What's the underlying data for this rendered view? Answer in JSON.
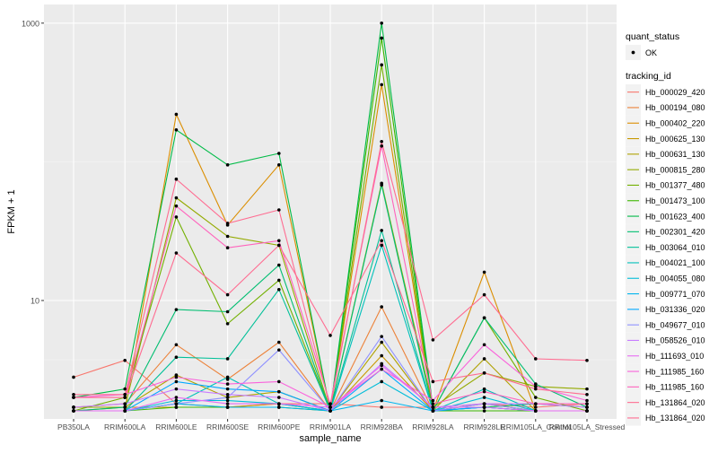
{
  "chart_data": {
    "type": "line",
    "xlabel": "sample_name",
    "ylabel": "FPKM + 1",
    "y_scale": "log10",
    "ylim": [
      1.4,
      1000
    ],
    "yticks": [
      {
        "value": 1000,
        "label": "1000"
      },
      {
        "value": 10,
        "label": "10"
      }
    ],
    "categories": [
      "PB350LA",
      "RRIM600LA",
      "RRIM600LE",
      "RRIM600SE",
      "RRIM600PE",
      "RRIM901LA",
      "RRIM928BA",
      "RRIM928LA",
      "RRIM928LE",
      "RRIM105LA_Control",
      "RRIM105LA_Stressed"
    ],
    "x_tick_labels": [
      "PB350LA",
      "RRIM600LA",
      "RRIM600LE",
      "RRIM600SE",
      "RRIM600PE",
      "RRIM901LA",
      "RRIM928BA",
      "RRIM928LA",
      "RRIM928LE",
      "RRIM105LA_Control",
      "RRIM105LA_Stressed"
    ],
    "legend": {
      "position": "right",
      "point_title": "quant_status",
      "point_label": "OK",
      "line_title": "tracking_id"
    },
    "series": [
      {
        "name": "Hb_000029_420",
        "color": "#F8766D",
        "values": [
          2.8,
          3.7,
          1.8,
          1.7,
          1.8,
          1.8,
          1.7,
          1.7,
          1.8,
          1.7,
          1.8
        ]
      },
      {
        "name": "Hb_000194_080",
        "color": "#EC8239",
        "values": [
          1.7,
          1.8,
          4.8,
          2.7,
          5.0,
          1.6,
          9.0,
          1.6,
          1.8,
          1.6,
          1.6
        ]
      },
      {
        "name": "Hb_000402_220",
        "color": "#DB8E00",
        "values": [
          1.6,
          1.6,
          220,
          35,
          95,
          1.6,
          360,
          1.6,
          16,
          1.6,
          1.6
        ]
      },
      {
        "name": "Hb_000625_130",
        "color": "#C79800",
        "values": [
          1.6,
          1.7,
          1.7,
          1.7,
          1.8,
          1.6,
          4.0,
          1.6,
          1.8,
          1.6,
          1.6
        ]
      },
      {
        "name": "Hb_000631_130",
        "color": "#AFA100",
        "values": [
          1.7,
          1.7,
          2.9,
          2.0,
          2.2,
          1.6,
          5.0,
          1.6,
          3.8,
          1.6,
          1.6
        ]
      },
      {
        "name": "Hb_000815_280",
        "color": "#94AA00",
        "values": [
          1.7,
          1.7,
          55,
          29,
          25,
          1.6,
          70,
          1.7,
          3.0,
          2.4,
          2.3
        ]
      },
      {
        "name": "Hb_001377_480",
        "color": "#72B000",
        "values": [
          1.6,
          2.0,
          40,
          6.8,
          14,
          1.6,
          500,
          1.6,
          7.5,
          2.0,
          1.6
        ]
      },
      {
        "name": "Hb_001473_100",
        "color": "#3DB700",
        "values": [
          1.6,
          1.6,
          1.7,
          1.7,
          1.7,
          1.6,
          780,
          1.6,
          1.6,
          1.6,
          1.6
        ]
      },
      {
        "name": "Hb_001623_400",
        "color": "#00BB47",
        "values": [
          2.0,
          2.3,
          170,
          95,
          115,
          1.6,
          1000,
          1.7,
          1.7,
          1.8,
          1.7
        ]
      },
      {
        "name": "Hb_002301_420",
        "color": "#00BE71",
        "values": [
          1.6,
          1.7,
          8.6,
          8.3,
          18,
          1.6,
          68,
          1.6,
          7.5,
          2.5,
          1.7
        ]
      },
      {
        "name": "Hb_003064_010",
        "color": "#00C098",
        "values": [
          1.6,
          1.6,
          3.9,
          3.8,
          12,
          1.6,
          32,
          1.6,
          1.7,
          1.6,
          1.6
        ]
      },
      {
        "name": "Hb_004021_100",
        "color": "#00C0BB",
        "values": [
          1.6,
          1.6,
          1.8,
          2.8,
          1.8,
          1.6,
          25,
          1.6,
          2.3,
          1.6,
          1.6
        ]
      },
      {
        "name": "Hb_004055_080",
        "color": "#00BCD8",
        "values": [
          1.6,
          1.6,
          1.9,
          1.9,
          1.8,
          1.6,
          2.6,
          1.6,
          2.0,
          1.6,
          1.6
        ]
      },
      {
        "name": "Hb_009771_070",
        "color": "#00B5EE",
        "values": [
          1.6,
          1.6,
          1.8,
          1.7,
          1.7,
          1.6,
          1.9,
          1.6,
          1.7,
          1.6,
          1.6
        ]
      },
      {
        "name": "Hb_031336_020",
        "color": "#00A9FF",
        "values": [
          1.6,
          1.6,
          2.6,
          2.3,
          2.2,
          1.6,
          3.2,
          1.6,
          1.7,
          1.6,
          1.6
        ]
      },
      {
        "name": "Hb_049677_010",
        "color": "#8F91FF",
        "values": [
          1.6,
          1.6,
          1.8,
          2.0,
          4.4,
          1.6,
          5.5,
          1.6,
          1.8,
          1.6,
          1.6
        ]
      },
      {
        "name": "Hb_058526_010",
        "color": "#C77CFF",
        "values": [
          1.7,
          1.8,
          2.3,
          2.1,
          2.0,
          1.6,
          3.5,
          1.7,
          1.8,
          1.8,
          1.7
        ]
      },
      {
        "name": "Hb_111693_010",
        "color": "#E76BF3",
        "values": [
          1.6,
          1.6,
          2.0,
          1.8,
          1.8,
          1.7,
          3.4,
          1.7,
          1.7,
          1.6,
          1.6
        ]
      },
      {
        "name": "Hb_111985_160",
        "color": "#FA62DB",
        "values": [
          2.0,
          2.1,
          2.8,
          2.5,
          2.6,
          1.7,
          3.2,
          1.9,
          4.8,
          2.4,
          1.9
        ]
      },
      {
        "name": "Hb_111985_160",
        "color": "#FF62BC",
        "values": [
          2.0,
          2.0,
          48,
          24,
          27,
          1.8,
          130,
          1.8,
          2.2,
          1.8,
          1.8
        ]
      },
      {
        "name": "Hb_131864_020",
        "color": "#FF6C91",
        "values": [
          2.1,
          2.1,
          75,
          36,
          45,
          1.7,
          140,
          5.2,
          11,
          3.8,
          3.7
        ]
      },
      {
        "name": "Hb_131864_020",
        "color": "#FF6C91",
        "values": [
          2.0,
          2.0,
          22,
          11,
          25,
          5.6,
          27,
          2.6,
          3.0,
          2.3,
          2.1
        ]
      }
    ]
  }
}
